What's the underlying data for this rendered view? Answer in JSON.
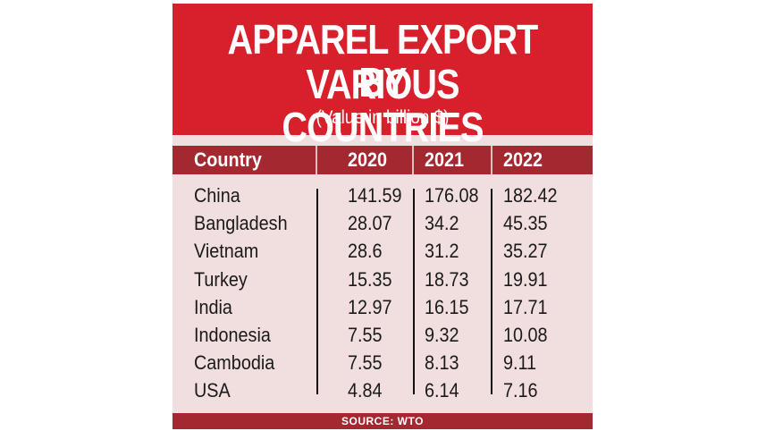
{
  "chart_data": {
    "type": "table",
    "title_line1": "APPAREL EXPORT BY",
    "title_line2": "VARIOUS COUNTRIES",
    "subtitle": "(Value in billion $)",
    "columns": [
      "Country",
      "2020",
      "2021",
      "2022"
    ],
    "rows": [
      [
        "China",
        "141.59",
        "176.08",
        "182.42"
      ],
      [
        "Bangladesh",
        "28.07",
        "34.2",
        "45.35"
      ],
      [
        "Vietnam",
        "28.6",
        "31.2",
        "35.27"
      ],
      [
        "Turkey",
        "15.35",
        "18.73",
        "19.91"
      ],
      [
        "India",
        "12.97",
        "16.15",
        "17.71"
      ],
      [
        "Indonesia",
        "7.55",
        "9.32",
        "10.08"
      ],
      [
        "Cambodia",
        "7.55",
        "8.13",
        "9.11"
      ],
      [
        "USA",
        "4.84",
        "6.14",
        "7.16"
      ]
    ],
    "source": "SOURCE: WTO"
  },
  "colors": {
    "banner": "#d7202b",
    "header_row": "#a3282f",
    "body_bg": "#f1dede",
    "text": "#1a1a1a"
  }
}
